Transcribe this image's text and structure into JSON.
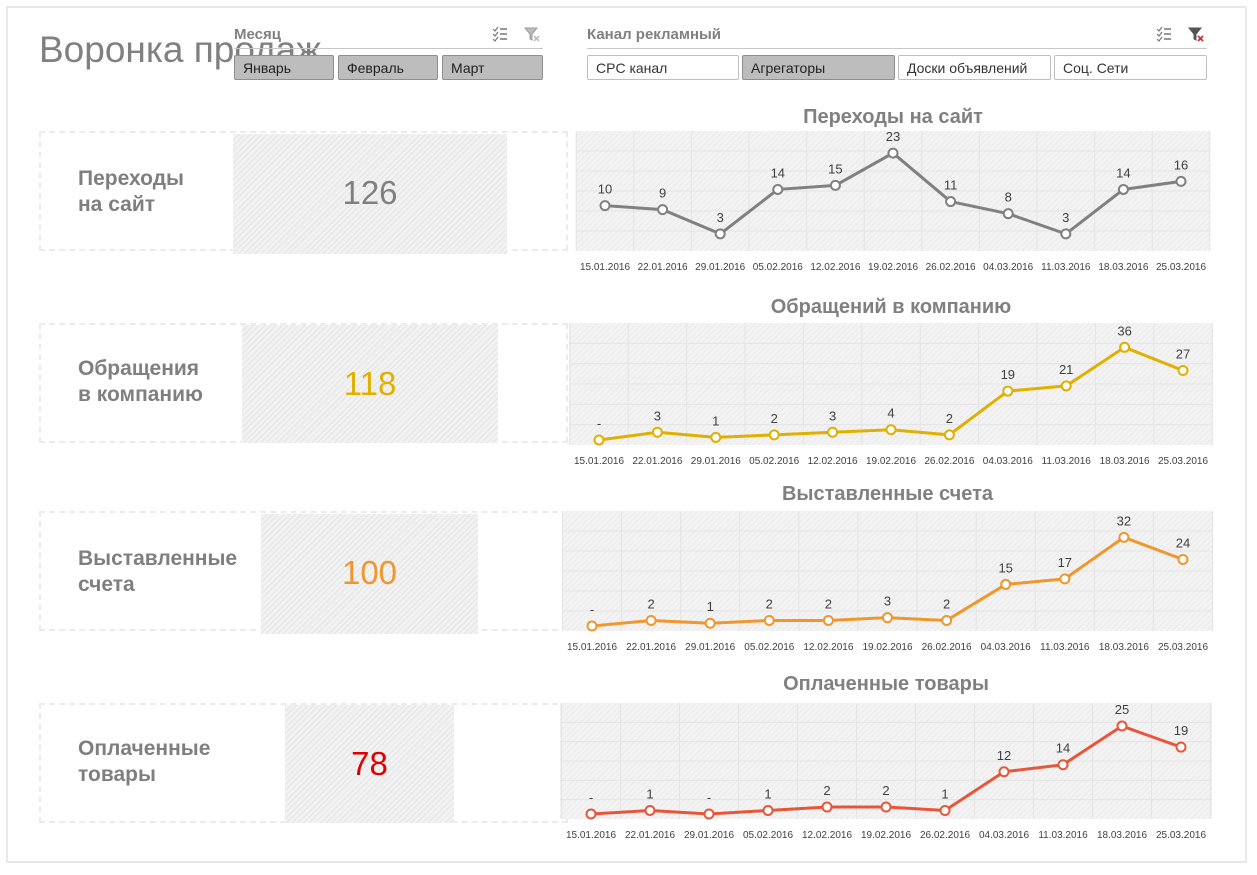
{
  "page": {
    "title": "Воронка продаж"
  },
  "month_slicer": {
    "title": "Месяц",
    "items": [
      {
        "label": "Январь",
        "selected": true
      },
      {
        "label": "Февраль",
        "selected": true
      },
      {
        "label": "Март",
        "selected": true
      }
    ]
  },
  "channel_slicer": {
    "title": "Канал рекламный",
    "items": [
      {
        "label": "CPC канал",
        "selected": false
      },
      {
        "label": "Агрегаторы",
        "selected": true
      },
      {
        "label": "Доски объявлений",
        "selected": false
      },
      {
        "label": "Соц. Сети",
        "selected": false
      }
    ]
  },
  "kpis": [
    {
      "label_line1": "Переходы",
      "label_line2": "на сайт",
      "value": "126",
      "color": "#808080"
    },
    {
      "label_line1": "Обращения",
      "label_line2": "в компанию",
      "value": "118",
      "color": "#e0b000"
    },
    {
      "label_line1": "Выставленные",
      "label_line2": "счета",
      "value": "100",
      "color": "#f0962e"
    },
    {
      "label_line1": "Оплаченные",
      "label_line2": "товары",
      "value": "78",
      "color": "#e00000"
    }
  ],
  "chart_data": [
    {
      "type": "line",
      "title": "Переходы на сайт",
      "x": [
        "15.01.2016",
        "22.01.2016",
        "29.01.2016",
        "05.02.2016",
        "12.02.2016",
        "19.02.2016",
        "26.02.2016",
        "04.03.2016",
        "11.03.2016",
        "18.03.2016",
        "25.03.2016"
      ],
      "values": [
        10,
        9,
        3,
        14,
        15,
        23,
        11,
        8,
        3,
        14,
        16
      ],
      "labels": [
        "10",
        "9",
        "3",
        "14",
        "15",
        "23",
        "11",
        "8",
        "3",
        "14",
        "16"
      ],
      "ylim": [
        0,
        25
      ],
      "color": "#808080",
      "grid": true
    },
    {
      "type": "line",
      "title": "Обращений в компанию",
      "x": [
        "15.01.2016",
        "22.01.2016",
        "29.01.2016",
        "05.02.2016",
        "12.02.2016",
        "19.02.2016",
        "26.02.2016",
        "04.03.2016",
        "11.03.2016",
        "18.03.2016",
        "25.03.2016"
      ],
      "values": [
        0,
        3,
        1,
        2,
        3,
        4,
        2,
        19,
        21,
        36,
        27
      ],
      "labels": [
        "-",
        "3",
        "1",
        "2",
        "3",
        "4",
        "2",
        "19",
        "21",
        "36",
        "27"
      ],
      "ylim": [
        0,
        40
      ],
      "color": "#e0b000",
      "grid": true
    },
    {
      "type": "line",
      "title": "Выставленные счета",
      "x": [
        "15.01.2016",
        "22.01.2016",
        "29.01.2016",
        "05.02.2016",
        "12.02.2016",
        "19.02.2016",
        "26.02.2016",
        "04.03.2016",
        "11.03.2016",
        "18.03.2016",
        "25.03.2016"
      ],
      "values": [
        0,
        2,
        1,
        2,
        2,
        3,
        2,
        15,
        17,
        32,
        24
      ],
      "labels": [
        "-",
        "2",
        "1",
        "2",
        "2",
        "3",
        "2",
        "15",
        "17",
        "32",
        "24"
      ],
      "ylim": [
        0,
        35
      ],
      "color": "#f0962e",
      "grid": true
    },
    {
      "type": "line",
      "title": "Оплаченные товары",
      "x": [
        "15.01.2016",
        "22.01.2016",
        "29.01.2016",
        "05.02.2016",
        "12.02.2016",
        "19.02.2016",
        "26.02.2016",
        "04.03.2016",
        "11.03.2016",
        "18.03.2016",
        "25.03.2016"
      ],
      "values": [
        0,
        1,
        0,
        1,
        2,
        2,
        1,
        12,
        14,
        25,
        19
      ],
      "labels": [
        "-",
        "1",
        "-",
        "1",
        "2",
        "2",
        "1",
        "12",
        "14",
        "25",
        "19"
      ],
      "ylim": [
        0,
        27
      ],
      "color": "#e8563a",
      "grid": true
    }
  ]
}
